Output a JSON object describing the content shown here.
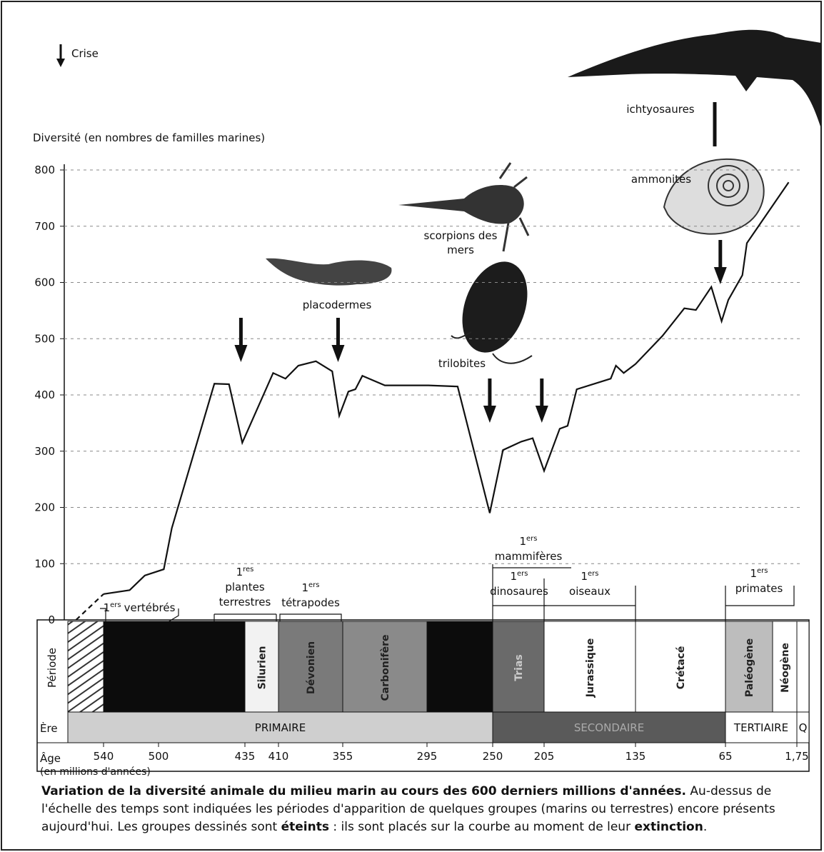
{
  "chart_data": {
    "type": "line",
    "y_axis_label": "Diversité (en nombres de familles marines)",
    "legend_label": "Crise",
    "ylim": [
      0,
      800
    ],
    "yticks": [
      0,
      100,
      200,
      300,
      400,
      500,
      600,
      700,
      800
    ],
    "xlim": [
      560,
      1.75
    ],
    "xticks": [
      540,
      500,
      435,
      410,
      355,
      295,
      250,
      205,
      135,
      65,
      {
        "value": 1.75,
        "label": "1,75"
      }
    ],
    "grid": true,
    "color": "#111",
    "series": [
      {
        "style": "dashed",
        "x": [
          560,
          540
        ],
        "values": [
          0,
          46
        ]
      },
      {
        "style": "solid",
        "x": [
          540,
          521,
          510,
          496,
          490,
          458,
          447,
          437,
          414,
          404,
          393,
          378,
          364,
          358,
          351,
          346,
          341,
          325,
          294,
          274,
          252,
          241,
          225,
          215,
          205,
          193,
          187,
          180,
          154,
          150,
          144,
          135,
          114,
          97,
          88,
          76,
          68,
          62.5,
          50,
          46,
          9
        ],
        "values": [
          46,
          53,
          79,
          90,
          163,
          420,
          419,
          315,
          439,
          429,
          452,
          460,
          442,
          363,
          406,
          410,
          434,
          417,
          417,
          415,
          190,
          302,
          317,
          323,
          265,
          340,
          345,
          410,
          429,
          452,
          439,
          455,
          505,
          554,
          551,
          592,
          531,
          569,
          613,
          670,
          778
        ]
      }
    ],
    "crises": [
      438,
      359,
      252,
      207,
      69
    ],
    "extinct_groups": [
      "placodermes",
      "scorpions des mers",
      "trilobites",
      "ammonites",
      "ichtyosaures"
    ],
    "appearances": [
      {
        "ordinal": "1",
        "suffix": "ers",
        "lines": [
          "vertébrés"
        ]
      },
      {
        "ordinal": "1",
        "suffix": "res",
        "lines": [
          "plantes",
          "terrestres"
        ]
      },
      {
        "ordinal": "1",
        "suffix": "ers",
        "lines": [
          "tétrapodes"
        ]
      },
      {
        "ordinal": "1",
        "suffix": "ers",
        "lines": [
          "mammifères"
        ]
      },
      {
        "ordinal": "1",
        "suffix": "ers",
        "lines": [
          "dinosaures"
        ]
      },
      {
        "ordinal": "1",
        "suffix": "ers",
        "lines": [
          "oiseaux"
        ]
      },
      {
        "ordinal": "1",
        "suffix": "ers",
        "lines": [
          "primates"
        ]
      }
    ],
    "timeline": {
      "period_header": "Période",
      "era_header": "Ère",
      "age_header": "Âge",
      "age_unit": "(en millions d'années)",
      "periods": [
        {
          "label": null,
          "fill": "hatch"
        },
        {
          "label": null,
          "fill": "#0c0c0c"
        },
        {
          "label": "Silurien",
          "fill": "#f2f2f2"
        },
        {
          "label": "Dévonien",
          "fill": "#7a7a7a"
        },
        {
          "label": "Carbonifère",
          "fill": "#8a8a8a"
        },
        {
          "label": null,
          "fill": "#0c0c0c"
        },
        {
          "label": "Trias",
          "fill": "#6a6a6a"
        },
        {
          "label": "Jurassique",
          "fill": "#ffffff"
        },
        {
          "label": "Crétacé",
          "fill": "#ffffff"
        },
        {
          "label": "Paléogène",
          "fill": "#bdbdbd"
        },
        {
          "label": "Néogène",
          "fill": "#ffffff"
        },
        {
          "label": null,
          "fill": "#ffffff"
        }
      ],
      "eras": [
        {
          "label": "PRIMAIRE",
          "fill": "#cfcfcf"
        },
        {
          "label": "SECONDAIRE",
          "fill": "#5a5a5a"
        },
        {
          "label": "TERTIAIRE",
          "fill": "#ffffff"
        },
        {
          "label": "Q",
          "fill": "#ffffff"
        }
      ]
    },
    "caption": [
      {
        "text": "Variation de la diversité animale du milieu marin au cours des 600 derniers millions d'années.",
        "bold": true
      },
      {
        "text": " Au-dessus de l'échelle des temps sont indiquées les périodes d'apparition de quelques groupes (marins ou terrestres) encore présents aujourd'hui. Les groupes dessinés sont ",
        "bold": false
      },
      {
        "text": "éteints",
        "bold": true
      },
      {
        "text": " : ils sont placés sur la courbe au moment de leur ",
        "bold": false
      },
      {
        "text": "extinction",
        "bold": true
      },
      {
        "text": ".",
        "bold": false
      }
    ]
  }
}
